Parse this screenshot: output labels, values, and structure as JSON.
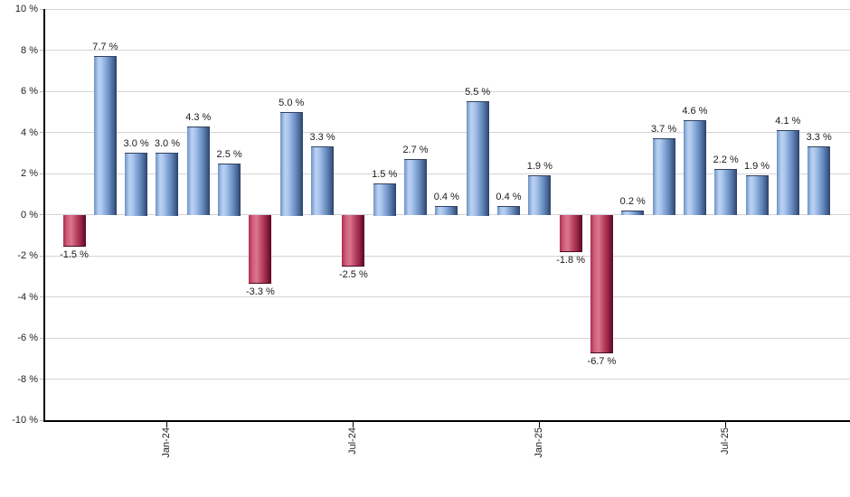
{
  "chart_data": {
    "type": "bar",
    "title": "",
    "xlabel": "",
    "ylabel": "",
    "ylim": [
      -10,
      10
    ],
    "grid": true,
    "values": [
      -1.5,
      7.7,
      3.0,
      3.0,
      4.3,
      2.5,
      -3.3,
      5.0,
      3.3,
      -2.5,
      1.5,
      2.7,
      0.4,
      5.5,
      0.4,
      1.9,
      -1.8,
      -6.7,
      0.2,
      3.7,
      4.6,
      2.2,
      1.9,
      4.1,
      3.3
    ],
    "bar_labels": [
      "-1.5 %",
      "7.7 %",
      "3.0 %",
      "3.0 %",
      "4.3 %",
      "2.5 %",
      "-3.3 %",
      "5.0 %",
      "3.3 %",
      "-2.5 %",
      "1.5 %",
      "2.7 %",
      "0.4 %",
      "5.5 %",
      "0.4 %",
      "1.9 %",
      "-1.8 %",
      "-6.7 %",
      "0.2 %",
      "3.7 %",
      "4.6 %",
      "2.2 %",
      "1.9 %",
      "4.1 %",
      "3.3 %"
    ],
    "x_ticks": [
      {
        "label": "Jan-24",
        "bar_index": 3
      },
      {
        "label": "Jul-24",
        "bar_index": 9
      },
      {
        "label": "Jan-25",
        "bar_index": 15
      },
      {
        "label": "Jul-25",
        "bar_index": 21
      }
    ],
    "y_ticks": [
      {
        "value": 10,
        "label": "10 %"
      },
      {
        "value": 8,
        "label": "8 %"
      },
      {
        "value": 6,
        "label": "6 %"
      },
      {
        "value": 4,
        "label": "4 %"
      },
      {
        "value": 2,
        "label": "2 %"
      },
      {
        "value": 0,
        "label": "0 %"
      },
      {
        "value": -2,
        "label": "-2 %"
      },
      {
        "value": -4,
        "label": "-4 %"
      },
      {
        "value": -6,
        "label": "-6 %"
      },
      {
        "value": -8,
        "label": "-8 %"
      },
      {
        "value": -10,
        "label": "-10 %"
      }
    ],
    "colors": {
      "positive_bar": "#8aabdc",
      "negative_bar": "#c04a68",
      "gridline": "#d4d4d4",
      "axis": "#000000",
      "label_text": "#1a1a1a"
    }
  }
}
